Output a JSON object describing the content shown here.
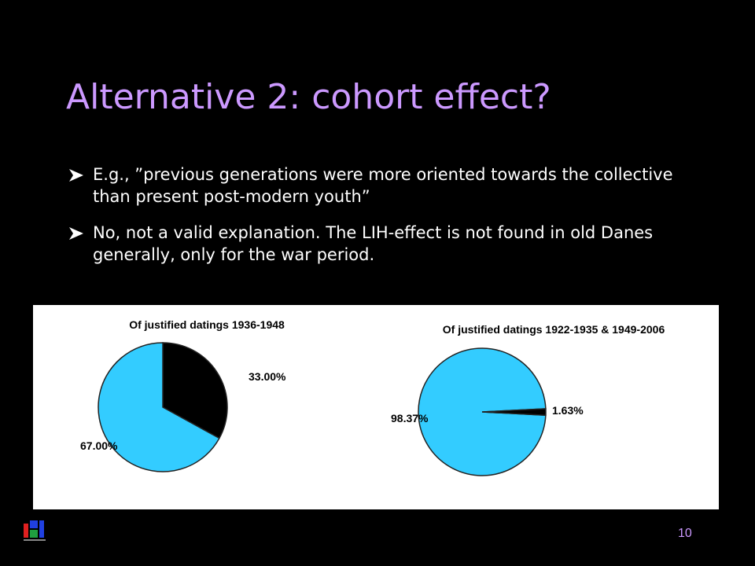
{
  "title": "Alternative 2: cohort effect?",
  "bullets": [
    "E.g., ”previous generations were more oriented towards the collective than present post-modern youth”",
    "No, not a valid explanation. The LIH-effect is not found in old Danes generally, only for the war period."
  ],
  "page_number": "10",
  "chart_data": [
    {
      "type": "pie",
      "title": "Of justified datings 1936-1948",
      "values": [
        33,
        67
      ],
      "value_labels": [
        "33.00%",
        "67.00%"
      ],
      "colors": [
        "#000000",
        "#33ccff"
      ]
    },
    {
      "type": "pie",
      "title": "Of justified datings 1922-1935 & 1949-2006",
      "values": [
        98.37,
        1.63
      ],
      "value_labels": [
        "98.37%",
        "1.63%"
      ],
      "colors": [
        "#33ccff",
        "#000000"
      ]
    }
  ]
}
